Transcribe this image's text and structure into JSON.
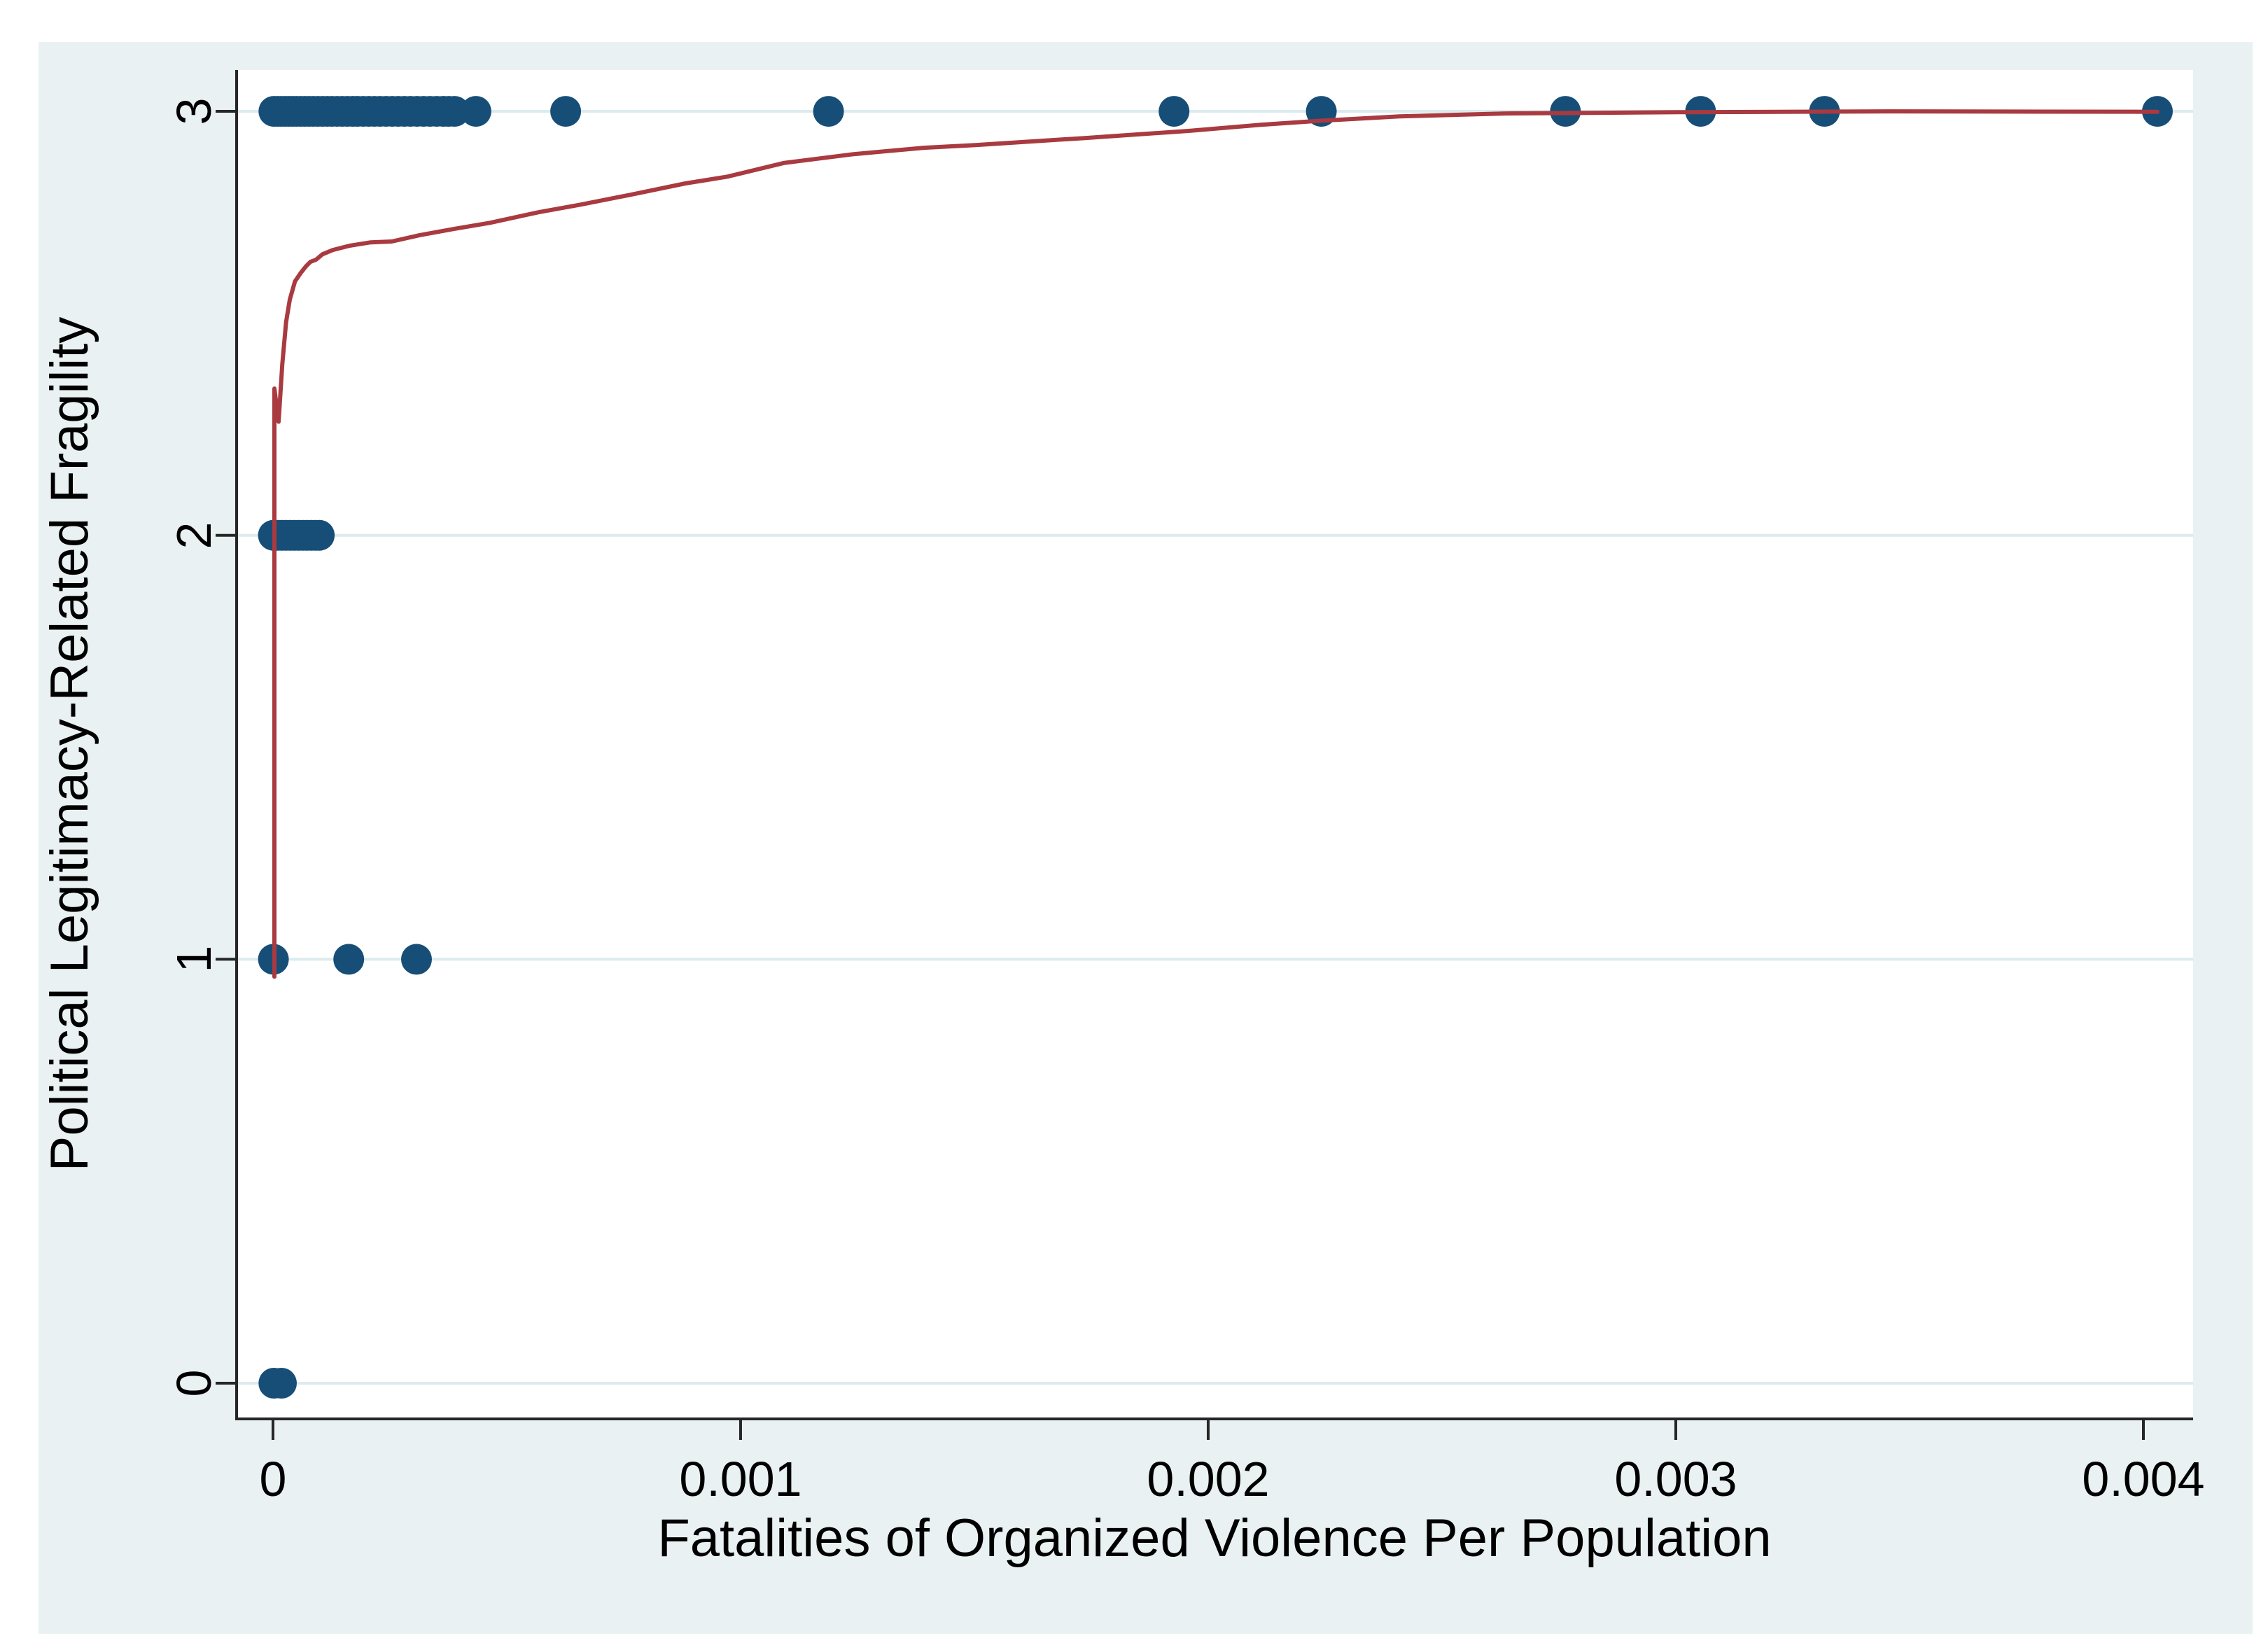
{
  "figure": {
    "background": "#e9f1f2",
    "plot_background": "#ffffff",
    "grid_color": "#dcebee",
    "axis_color": "#262626",
    "text_color": "#000000"
  },
  "chart_data": {
    "type": "scatter",
    "xlabel": "Fatalities of Organized Violence Per Population",
    "ylabel": "Political Legitimacy-Related Fragility",
    "xlim": [
      -7.78e-05,
      0.0041063
    ],
    "ylim": [
      -0.0842,
      3.0975
    ],
    "grid": true,
    "x_ticks": [
      0,
      0.001,
      0.002,
      0.003,
      0.004
    ],
    "x_tick_labels": [
      "0",
      "0.001",
      "0.002",
      "0.003",
      "0.004"
    ],
    "y_ticks": [
      0,
      1,
      2,
      3
    ],
    "y_tick_labels": [
      "0",
      "1",
      "2",
      "3"
    ],
    "scatter": {
      "color": "#174e77",
      "radius": 22,
      "series": [
        {
          "name": "fragility-3",
          "y": 3,
          "x": [
            2e-06,
            1e-05,
            1.8e-05,
            2.6e-05,
            3.4e-05,
            4.2e-05,
            5e-05,
            5.9e-05,
            6.8e-05,
            7.7e-05,
            8.6e-05,
            9.6e-05,
            0.000106,
            0.000116,
            0.000126,
            0.000137,
            0.000148,
            0.000159,
            0.00017,
            0.000181,
            0.000193,
            0.000205,
            0.000217,
            0.000229,
            0.000242,
            0.000255,
            0.000268,
            0.000281,
            0.000294,
            0.000308,
            0.000322,
            0.000336,
            0.00035,
            0.000364,
            0.000376,
            0.000388,
            0.000434,
            0.000626,
            0.001188,
            0.001927,
            0.002242,
            0.002764,
            0.003053,
            0.003318,
            0.00403
          ]
        },
        {
          "name": "fragility-2",
          "y": 2,
          "x": [
            1e-06,
            1e-05,
            1.9e-05,
            2.8e-05,
            3.7e-05,
            4.6e-05,
            5.5e-05,
            6.4e-05,
            7.3e-05,
            8.2e-05,
            9.1e-05,
            9.9e-05
          ]
        },
        {
          "name": "fragility-1",
          "y": 1,
          "x": [
            1e-06,
            0.000162,
            0.000307
          ]
        },
        {
          "name": "fragility-0",
          "y": 0,
          "x": [
            2e-06,
            1.8e-05
          ]
        }
      ]
    },
    "lowess": {
      "color": "#a93a40",
      "width": 6,
      "points": [
        [
          3e-06,
          0.959
        ],
        [
          3e-06,
          2.346
        ],
        [
          1.2e-05,
          2.268
        ],
        [
          2e-05,
          2.404
        ],
        [
          2.8e-05,
          2.503
        ],
        [
          3.6e-05,
          2.556
        ],
        [
          4.7e-05,
          2.599
        ],
        [
          6e-05,
          2.62
        ],
        [
          7.1e-05,
          2.635
        ],
        [
          8e-05,
          2.645
        ],
        [
          9.2e-05,
          2.65
        ],
        [
          0.000106,
          2.663
        ],
        [
          0.000128,
          2.673
        ],
        [
          0.000164,
          2.683
        ],
        [
          0.000209,
          2.691
        ],
        [
          0.000254,
          2.693
        ],
        [
          0.000314,
          2.708
        ],
        [
          0.000389,
          2.723
        ],
        [
          0.000464,
          2.737
        ],
        [
          0.000568,
          2.762
        ],
        [
          0.000658,
          2.78
        ],
        [
          0.000763,
          2.803
        ],
        [
          0.000882,
          2.83
        ],
        [
          0.000972,
          2.846
        ],
        [
          0.001092,
          2.878
        ],
        [
          0.001242,
          2.899
        ],
        [
          0.001392,
          2.914
        ],
        [
          0.001511,
          2.921
        ],
        [
          0.001736,
          2.937
        ],
        [
          0.00196,
          2.954
        ],
        [
          0.00211,
          2.968
        ],
        [
          0.002242,
          2.978
        ],
        [
          0.002409,
          2.988
        ],
        [
          0.002634,
          2.995
        ],
        [
          0.003008,
          2.998
        ],
        [
          0.003457,
          3.0
        ],
        [
          0.00403,
          2.999
        ]
      ]
    }
  }
}
